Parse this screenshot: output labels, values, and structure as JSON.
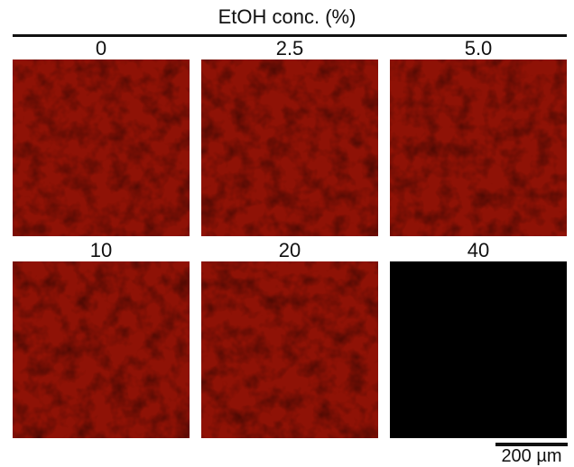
{
  "header": {
    "title": "EtOH conc. (%)"
  },
  "panels": [
    {
      "label": "0",
      "signal": 1.0
    },
    {
      "label": "2.5",
      "signal": 1.0
    },
    {
      "label": "5.0",
      "signal": 1.0
    },
    {
      "label": "10",
      "signal": 1.0
    },
    {
      "label": "20",
      "signal": 1.0
    },
    {
      "label": "40",
      "signal": 0.0
    }
  ],
  "colors": {
    "fluorescence": "#8f1206",
    "background": "#000000"
  },
  "scale_bar": {
    "label": "200 µm"
  }
}
